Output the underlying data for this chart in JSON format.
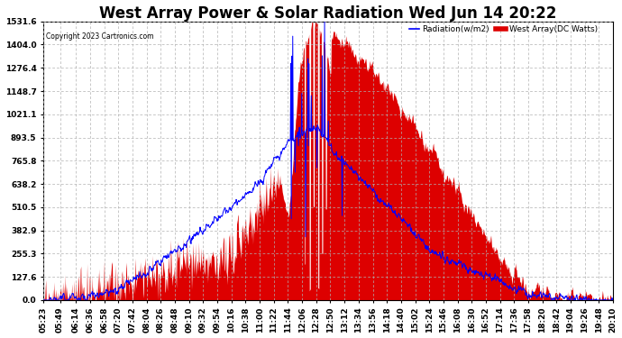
{
  "title": "West Array Power & Solar Radiation Wed Jun 14 20:22",
  "copyright": "Copyright 2023 Cartronics.com",
  "legend_radiation": "Radiation(w/m2)",
  "legend_array": "West Array(DC Watts)",
  "y_max": 1531.6,
  "y_ticks": [
    0.0,
    127.6,
    255.3,
    382.9,
    510.5,
    638.2,
    765.8,
    893.5,
    1021.1,
    1148.7,
    1276.4,
    1404.0,
    1531.6
  ],
  "background_color": "#ffffff",
  "plot_bg_color": "#ffffff",
  "grid_color": "#b0b0b0",
  "radiation_color": "#0000ff",
  "array_color": "#dd0000",
  "title_fontsize": 12,
  "tick_fontsize": 6.5,
  "x_tick_labels": [
    "05:23",
    "05:49",
    "06:14",
    "06:36",
    "06:58",
    "07:20",
    "07:42",
    "08:04",
    "08:26",
    "08:48",
    "09:10",
    "09:32",
    "09:54",
    "10:16",
    "10:38",
    "11:00",
    "11:22",
    "11:44",
    "12:06",
    "12:28",
    "12:50",
    "13:12",
    "13:34",
    "13:56",
    "14:18",
    "14:40",
    "15:02",
    "15:24",
    "15:46",
    "16:08",
    "16:30",
    "16:52",
    "17:14",
    "17:36",
    "17:58",
    "18:20",
    "18:42",
    "19:04",
    "19:26",
    "19:48",
    "20:10"
  ],
  "x_label_times": [
    5.383,
    5.817,
    6.233,
    6.6,
    6.967,
    7.333,
    7.7,
    8.067,
    8.433,
    8.8,
    9.167,
    9.533,
    9.9,
    10.267,
    10.633,
    11.0,
    11.367,
    11.733,
    12.1,
    12.467,
    12.833,
    13.2,
    13.567,
    13.933,
    14.3,
    14.667,
    15.033,
    15.4,
    15.767,
    16.133,
    16.5,
    16.867,
    17.233,
    17.6,
    17.967,
    18.333,
    18.7,
    19.067,
    19.433,
    19.8,
    20.167
  ]
}
